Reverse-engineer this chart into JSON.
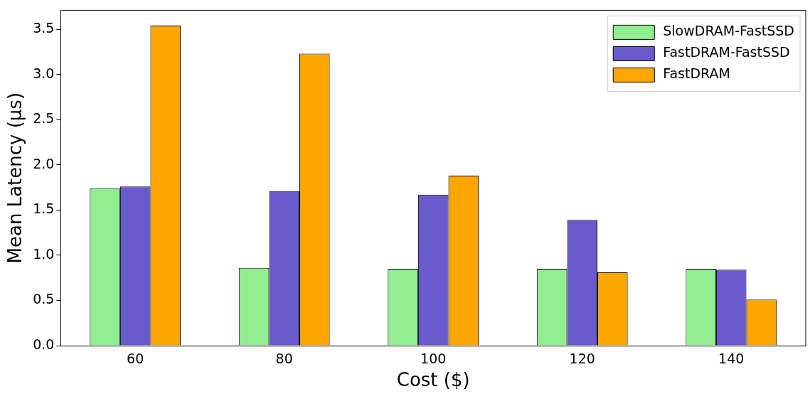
{
  "chart_data": {
    "type": "bar",
    "xlabel": "Cost ($)",
    "ylabel": "Mean Latency (μs)",
    "categories": [
      "60",
      "80",
      "100",
      "120",
      "140"
    ],
    "series": [
      {
        "name": "SlowDRAM-FastSSD",
        "color": "#90ee90",
        "values": [
          1.74,
          0.86,
          0.85,
          0.85,
          0.85
        ]
      },
      {
        "name": "FastDRAM-FastSSD",
        "color": "#6a5acd",
        "values": [
          1.76,
          1.71,
          1.67,
          1.39,
          0.84
        ]
      },
      {
        "name": "FastDRAM",
        "color": "#ffa500",
        "values": [
          3.54,
          3.23,
          1.88,
          0.81,
          0.51
        ]
      }
    ],
    "ylim": [
      0,
      3.71
    ],
    "yticks": [
      {
        "value": 0,
        "label": "0.0"
      },
      {
        "value": 0.5,
        "label": "0.5"
      },
      {
        "value": 1,
        "label": "1.0"
      },
      {
        "value": 1.5,
        "label": "1.5"
      },
      {
        "value": 2,
        "label": "2.0"
      },
      {
        "value": 2.5,
        "label": "2.5"
      },
      {
        "value": 3,
        "label": "3.0"
      },
      {
        "value": 3.5,
        "label": "3.5"
      }
    ],
    "grid": false,
    "legend": "top right"
  }
}
